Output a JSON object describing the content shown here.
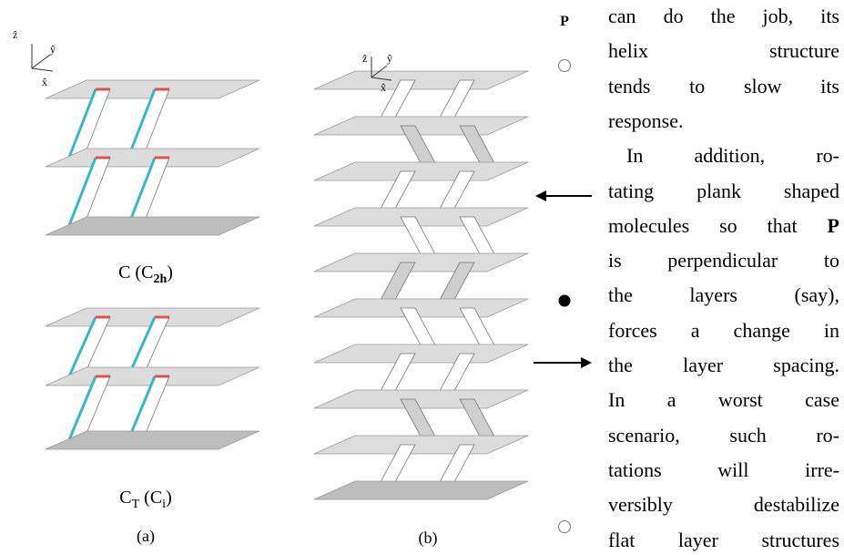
{
  "figure": {
    "panel_a": {
      "axes": [
        "ẑ",
        "ŷ",
        "x̂"
      ],
      "top_caption": {
        "main": "C (C",
        "sub": "2h",
        "close": ")"
      },
      "bottom_caption": {
        "main": "C",
        "sub1": "T",
        "mid": " (C",
        "sub2": "i",
        "close": ")"
      },
      "label": "(a)"
    },
    "panel_b": {
      "axes": [
        "ẑ",
        "ŷ",
        "x̂"
      ],
      "label": "(b)"
    },
    "polarization": {
      "label": "P"
    }
  },
  "text": {
    "lines": [
      "can do the job, its",
      "helix structure",
      "tends to slow its",
      "response.",
      "In addition, ro-",
      "tating plank shaped",
      [
        "molecules so that",
        "P"
      ],
      "is perpendicular to",
      "the layers (say),",
      "forces a change in",
      "the layer spacing.",
      "In a worst case",
      "scenario, such ro-",
      "tations will irre-",
      "versibly destabilize",
      "flat layer structures"
    ]
  }
}
